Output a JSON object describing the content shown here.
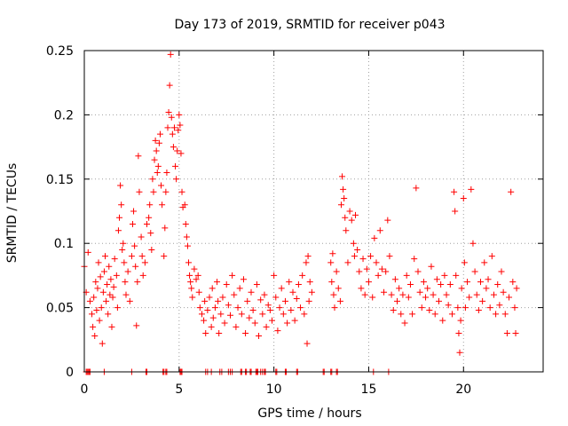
{
  "chart_data": {
    "type": "scatter",
    "title": "Day 173 of 2019, SRMTID for receiver p043",
    "xlabel": "GPS time / hours",
    "ylabel": "SRMTID / TECUs",
    "xlim": [
      0,
      24.2
    ],
    "ylim": [
      0,
      0.25
    ],
    "x_ticks": [
      0,
      5,
      10,
      15,
      20
    ],
    "x_tick_labels": [
      "0",
      "5",
      "10",
      "15",
      "20"
    ],
    "y_ticks": [
      0,
      0.05,
      0.1,
      0.15,
      0.2,
      0.25
    ],
    "y_tick_labels": [
      "0",
      "0.05",
      "0.1",
      "0.15",
      "0.2",
      "0.25"
    ],
    "grid": true,
    "marker": "+",
    "series_color": "#ff0000",
    "series": [
      {
        "name": "SRMTID",
        "points": [
          [
            0.0,
            0.082
          ],
          [
            0.1,
            0.062
          ],
          [
            0.2,
            0.093
          ],
          [
            0.3,
            0.055
          ],
          [
            0.4,
            0.045
          ],
          [
            0.45,
            0.035
          ],
          [
            0.5,
            0.058
          ],
          [
            0.55,
            0.028
          ],
          [
            0.6,
            0.07
          ],
          [
            0.65,
            0.048
          ],
          [
            0.7,
            0.065
          ],
          [
            0.75,
            0.085
          ],
          [
            0.8,
            0.04
          ],
          [
            0.85,
            0.074
          ],
          [
            0.9,
            0.05
          ],
          [
            0.95,
            0.022
          ],
          [
            1.0,
            0.062
          ],
          [
            1.05,
            0.078
          ],
          [
            1.1,
            0.09
          ],
          [
            1.15,
            0.055
          ],
          [
            1.2,
            0.068
          ],
          [
            1.25,
            0.045
          ],
          [
            1.3,
            0.082
          ],
          [
            1.35,
            0.06
          ],
          [
            1.4,
            0.072
          ],
          [
            1.45,
            0.035
          ],
          [
            1.5,
            0.058
          ],
          [
            1.55,
            0.066
          ],
          [
            1.6,
            0.088
          ],
          [
            1.7,
            0.075
          ],
          [
            1.75,
            0.05
          ],
          [
            1.8,
            0.11
          ],
          [
            1.85,
            0.12
          ],
          [
            1.9,
            0.145
          ],
          [
            1.95,
            0.13
          ],
          [
            2.0,
            0.095
          ],
          [
            2.05,
            0.1
          ],
          [
            2.1,
            0.085
          ],
          [
            2.15,
            0.07
          ],
          [
            2.2,
            0.06
          ],
          [
            2.3,
            0.078
          ],
          [
            2.4,
            0.055
          ],
          [
            2.5,
            0.09
          ],
          [
            2.55,
            0.115
          ],
          [
            2.6,
            0.125
          ],
          [
            2.65,
            0.098
          ],
          [
            2.7,
            0.082
          ],
          [
            2.75,
            0.036
          ],
          [
            2.8,
            0.07
          ],
          [
            2.85,
            0.168
          ],
          [
            2.9,
            0.14
          ],
          [
            3.0,
            0.105
          ],
          [
            3.05,
            0.09
          ],
          [
            3.1,
            0.075
          ],
          [
            3.2,
            0.085
          ],
          [
            3.3,
            0.115
          ],
          [
            3.4,
            0.12
          ],
          [
            3.45,
            0.13
          ],
          [
            3.5,
            0.108
          ],
          [
            3.55,
            0.095
          ],
          [
            3.6,
            0.15
          ],
          [
            3.65,
            0.14
          ],
          [
            3.7,
            0.165
          ],
          [
            3.75,
            0.18
          ],
          [
            3.8,
            0.172
          ],
          [
            3.85,
            0.155
          ],
          [
            3.9,
            0.16
          ],
          [
            3.95,
            0.178
          ],
          [
            4.0,
            0.185
          ],
          [
            4.05,
            0.145
          ],
          [
            4.1,
            0.13
          ],
          [
            4.2,
            0.09
          ],
          [
            4.25,
            0.112
          ],
          [
            4.3,
            0.14
          ],
          [
            4.35,
            0.155
          ],
          [
            4.4,
            0.19
          ],
          [
            4.45,
            0.202
          ],
          [
            4.5,
            0.223
          ],
          [
            4.55,
            0.247
          ],
          [
            4.6,
            0.198
          ],
          [
            4.65,
            0.185
          ],
          [
            4.7,
            0.175
          ],
          [
            4.75,
            0.19
          ],
          [
            4.8,
            0.16
          ],
          [
            4.85,
            0.15
          ],
          [
            4.9,
            0.172
          ],
          [
            4.95,
            0.188
          ],
          [
            5.0,
            0.2
          ],
          [
            5.05,
            0.192
          ],
          [
            5.1,
            0.17
          ],
          [
            5.15,
            0.14
          ],
          [
            5.2,
            0.128
          ],
          [
            5.3,
            0.13
          ],
          [
            5.35,
            0.115
          ],
          [
            5.4,
            0.105
          ],
          [
            5.45,
            0.098
          ],
          [
            5.5,
            0.085
          ],
          [
            5.55,
            0.075
          ],
          [
            5.6,
            0.07
          ],
          [
            5.65,
            0.065
          ],
          [
            5.7,
            0.058
          ],
          [
            5.8,
            0.08
          ],
          [
            5.9,
            0.072
          ],
          [
            6.0,
            0.075
          ],
          [
            6.05,
            0.062
          ],
          [
            6.1,
            0.05
          ],
          [
            6.2,
            0.045
          ],
          [
            6.3,
            0.04
          ],
          [
            6.35,
            0.055
          ],
          [
            6.4,
            0.03
          ],
          [
            6.5,
            0.048
          ],
          [
            6.6,
            0.058
          ],
          [
            6.7,
            0.035
          ],
          [
            6.75,
            0.065
          ],
          [
            6.8,
            0.042
          ],
          [
            6.9,
            0.05
          ],
          [
            7.0,
            0.07
          ],
          [
            7.05,
            0.055
          ],
          [
            7.1,
            0.03
          ],
          [
            7.2,
            0.045
          ],
          [
            7.3,
            0.058
          ],
          [
            7.4,
            0.038
          ],
          [
            7.5,
            0.068
          ],
          [
            7.6,
            0.052
          ],
          [
            7.7,
            0.044
          ],
          [
            7.8,
            0.075
          ],
          [
            7.9,
            0.06
          ],
          [
            8.0,
            0.035
          ],
          [
            8.1,
            0.05
          ],
          [
            8.2,
            0.065
          ],
          [
            8.3,
            0.045
          ],
          [
            8.4,
            0.072
          ],
          [
            8.5,
            0.03
          ],
          [
            8.6,
            0.055
          ],
          [
            8.7,
            0.042
          ],
          [
            8.8,
            0.062
          ],
          [
            8.9,
            0.048
          ],
          [
            9.0,
            0.038
          ],
          [
            9.1,
            0.068
          ],
          [
            9.2,
            0.028
          ],
          [
            9.3,
            0.056
          ],
          [
            9.4,
            0.045
          ],
          [
            9.5,
            0.06
          ],
          [
            9.6,
            0.035
          ],
          [
            9.7,
            0.052
          ],
          [
            9.8,
            0.048
          ],
          [
            9.9,
            0.04
          ],
          [
            10.0,
            0.075
          ],
          [
            10.1,
            0.058
          ],
          [
            10.2,
            0.032
          ],
          [
            10.3,
            0.05
          ],
          [
            10.4,
            0.065
          ],
          [
            10.5,
            0.045
          ],
          [
            10.6,
            0.055
          ],
          [
            10.7,
            0.038
          ],
          [
            10.8,
            0.07
          ],
          [
            10.9,
            0.048
          ],
          [
            11.0,
            0.062
          ],
          [
            11.1,
            0.04
          ],
          [
            11.2,
            0.057
          ],
          [
            11.3,
            0.068
          ],
          [
            11.4,
            0.05
          ],
          [
            11.5,
            0.075
          ],
          [
            11.6,
            0.045
          ],
          [
            11.7,
            0.085
          ],
          [
            11.75,
            0.022
          ],
          [
            11.8,
            0.09
          ],
          [
            11.85,
            0.055
          ],
          [
            11.9,
            0.07
          ],
          [
            12.0,
            0.062
          ],
          [
            13.0,
            0.085
          ],
          [
            13.05,
            0.07
          ],
          [
            13.1,
            0.092
          ],
          [
            13.15,
            0.06
          ],
          [
            13.2,
            0.05
          ],
          [
            13.3,
            0.078
          ],
          [
            13.4,
            0.065
          ],
          [
            13.5,
            0.055
          ],
          [
            13.55,
            0.13
          ],
          [
            13.6,
            0.152
          ],
          [
            13.65,
            0.142
          ],
          [
            13.7,
            0.135
          ],
          [
            13.75,
            0.12
          ],
          [
            13.8,
            0.11
          ],
          [
            13.9,
            0.085
          ],
          [
            14.0,
            0.125
          ],
          [
            14.1,
            0.118
          ],
          [
            14.2,
            0.1
          ],
          [
            14.25,
            0.09
          ],
          [
            14.3,
            0.122
          ],
          [
            14.4,
            0.095
          ],
          [
            14.5,
            0.078
          ],
          [
            14.6,
            0.065
          ],
          [
            14.7,
            0.088
          ],
          [
            14.8,
            0.06
          ],
          [
            14.9,
            0.08
          ],
          [
            15.0,
            0.07
          ],
          [
            15.1,
            0.09
          ],
          [
            15.2,
            0.058
          ],
          [
            15.3,
            0.104
          ],
          [
            15.4,
            0.085
          ],
          [
            15.5,
            0.075
          ],
          [
            15.6,
            0.11
          ],
          [
            15.7,
            0.08
          ],
          [
            15.8,
            0.062
          ],
          [
            15.9,
            0.078
          ],
          [
            16.0,
            0.118
          ],
          [
            16.1,
            0.09
          ],
          [
            16.2,
            0.06
          ],
          [
            16.3,
            0.048
          ],
          [
            16.4,
            0.072
          ],
          [
            16.5,
            0.055
          ],
          [
            16.6,
            0.065
          ],
          [
            16.7,
            0.045
          ],
          [
            16.8,
            0.06
          ],
          [
            16.9,
            0.038
          ],
          [
            17.0,
            0.075
          ],
          [
            17.1,
            0.058
          ],
          [
            17.2,
            0.068
          ],
          [
            17.3,
            0.045
          ],
          [
            17.4,
            0.088
          ],
          [
            17.5,
            0.143
          ],
          [
            17.6,
            0.078
          ],
          [
            17.7,
            0.062
          ],
          [
            17.8,
            0.05
          ],
          [
            17.9,
            0.07
          ],
          [
            18.0,
            0.058
          ],
          [
            18.1,
            0.065
          ],
          [
            18.2,
            0.048
          ],
          [
            18.3,
            0.082
          ],
          [
            18.4,
            0.06
          ],
          [
            18.5,
            0.045
          ],
          [
            18.6,
            0.072
          ],
          [
            18.7,
            0.055
          ],
          [
            18.8,
            0.068
          ],
          [
            18.9,
            0.04
          ],
          [
            19.0,
            0.075
          ],
          [
            19.1,
            0.06
          ],
          [
            19.2,
            0.052
          ],
          [
            19.3,
            0.068
          ],
          [
            19.4,
            0.045
          ],
          [
            19.5,
            0.14
          ],
          [
            19.55,
            0.125
          ],
          [
            19.6,
            0.075
          ],
          [
            19.7,
            0.05
          ],
          [
            19.75,
            0.03
          ],
          [
            19.8,
            0.015
          ],
          [
            19.85,
            0.04
          ],
          [
            19.9,
            0.065
          ],
          [
            20.0,
            0.135
          ],
          [
            20.05,
            0.085
          ],
          [
            20.1,
            0.05
          ],
          [
            20.2,
            0.07
          ],
          [
            20.3,
            0.058
          ],
          [
            20.4,
            0.142
          ],
          [
            20.5,
            0.1
          ],
          [
            20.6,
            0.078
          ],
          [
            20.7,
            0.06
          ],
          [
            20.8,
            0.048
          ],
          [
            20.9,
            0.07
          ],
          [
            21.0,
            0.055
          ],
          [
            21.1,
            0.085
          ],
          [
            21.2,
            0.065
          ],
          [
            21.3,
            0.072
          ],
          [
            21.4,
            0.05
          ],
          [
            21.5,
            0.09
          ],
          [
            21.6,
            0.06
          ],
          [
            21.7,
            0.045
          ],
          [
            21.8,
            0.068
          ],
          [
            21.9,
            0.052
          ],
          [
            22.0,
            0.078
          ],
          [
            22.1,
            0.062
          ],
          [
            22.2,
            0.045
          ],
          [
            22.3,
            0.03
          ],
          [
            22.4,
            0.058
          ],
          [
            22.5,
            0.14
          ],
          [
            22.6,
            0.07
          ],
          [
            22.7,
            0.05
          ],
          [
            22.75,
            0.03
          ],
          [
            22.8,
            0.065
          ]
        ],
        "zero_points": [
          0.1,
          0.15,
          0.2,
          0.25,
          0.3,
          1.05,
          2.5,
          3.25,
          3.3,
          4.15,
          4.2,
          4.3,
          4.35,
          5.05,
          5.1,
          5.15,
          6.4,
          6.5,
          6.7,
          7.15,
          7.25,
          7.6,
          7.7,
          7.8,
          8.25,
          8.3,
          8.5,
          8.55,
          8.75,
          8.8,
          9.05,
          9.1,
          9.15,
          9.3,
          9.4,
          9.5,
          9.55,
          10.1,
          10.15,
          10.6,
          10.65,
          11.2,
          11.25,
          12.6,
          12.65,
          13.0,
          13.05,
          13.3,
          13.35,
          15.25,
          16.05
        ]
      }
    ]
  }
}
